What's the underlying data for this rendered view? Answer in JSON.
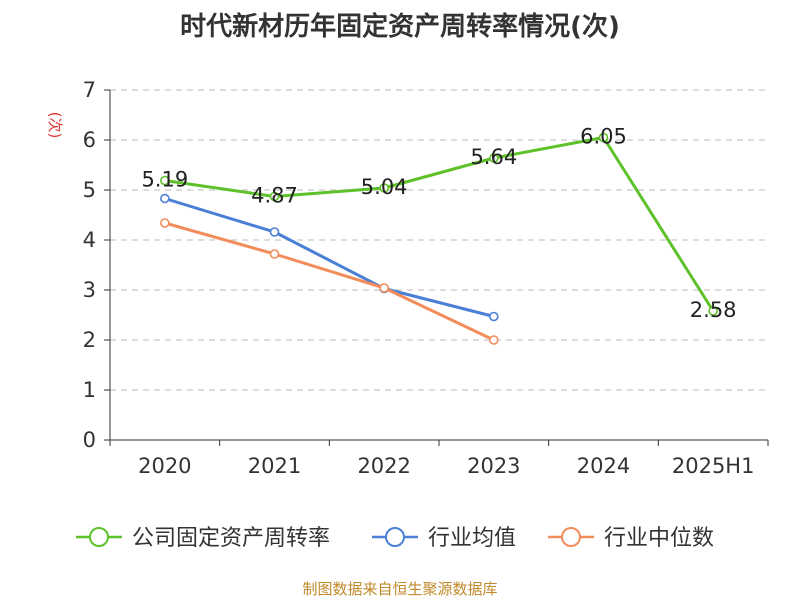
{
  "chart_data": {
    "type": "line",
    "title": "时代新材历年固定资产周转率情况(次)",
    "ylabel": "(次)",
    "xlabel": "",
    "categories": [
      "2020",
      "2021",
      "2022",
      "2023",
      "2024",
      "2025H1"
    ],
    "ylim": [
      0,
      7
    ],
    "yticks": [
      "0",
      "1",
      "2",
      "3",
      "4",
      "5",
      "6",
      "7"
    ],
    "grid": true,
    "legend_position": "bottom",
    "series": [
      {
        "name": "公司固定资产周转率",
        "color": "#5ec12a",
        "values": [
          5.19,
          4.87,
          5.04,
          5.64,
          6.05,
          2.58
        ],
        "labels": [
          "5.19",
          "4.87",
          "5.04",
          "5.64",
          "6.05",
          "2.58"
        ]
      },
      {
        "name": "行业均值",
        "color": "#4a7fd6",
        "values": [
          4.83,
          4.16,
          3.03,
          2.47,
          null,
          null
        ]
      },
      {
        "name": "行业中位数",
        "color": "#f28c5a",
        "values": [
          4.34,
          3.72,
          3.04,
          2.0,
          null,
          null
        ]
      }
    ]
  },
  "footer": {
    "source": "制图数据来自恒生聚源数据库"
  },
  "colors": {
    "ylabel": "#e03b3b",
    "grid": "#c8c8c8",
    "axis": "#333333"
  }
}
